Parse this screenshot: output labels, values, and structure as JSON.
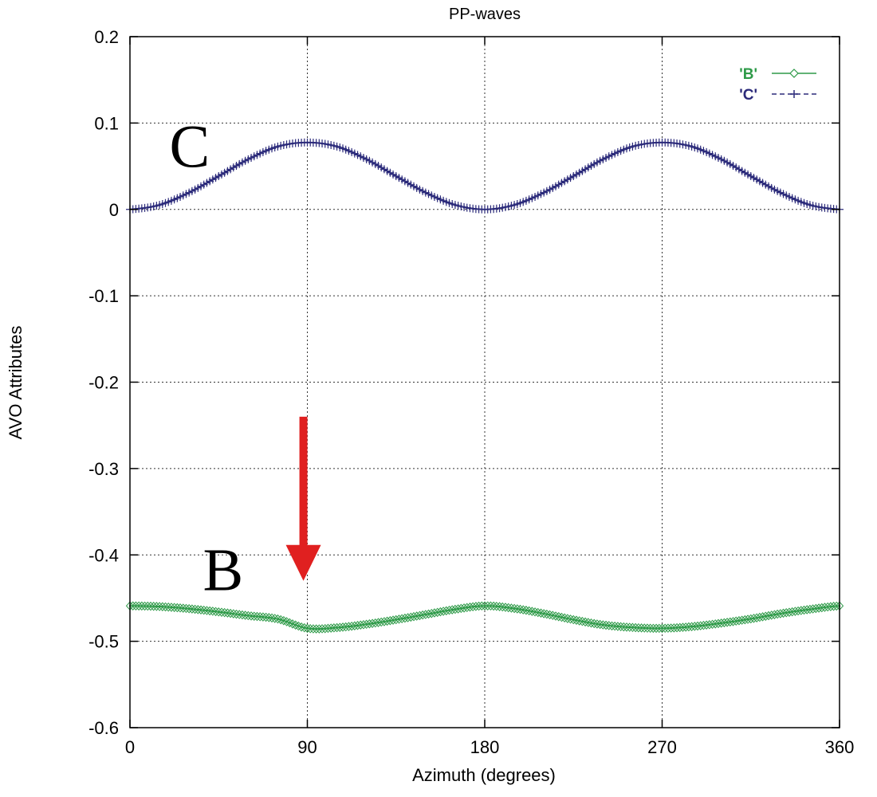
{
  "chart_data": {
    "type": "line",
    "title": "PP-waves",
    "xlabel": "Azimuth (degrees)",
    "ylabel": "AVO Attributes",
    "xlim": [
      0,
      360
    ],
    "ylim": [
      -0.6,
      0.2
    ],
    "xticks": [
      "0",
      "90",
      "180",
      "270",
      "360"
    ],
    "yticks": [
      "0.2",
      "0.1",
      "0",
      "-0.1",
      "-0.2",
      "-0.3",
      "-0.4",
      "-0.5",
      "-0.6"
    ],
    "grid": true,
    "legend_position": "top-right",
    "series": [
      {
        "name": "'B'",
        "color": "#2e9a48",
        "marker": "diamond",
        "line": "solid",
        "x": [
          0,
          15,
          30,
          45,
          60,
          75,
          90,
          105,
          120,
          135,
          150,
          165,
          180,
          195,
          210,
          225,
          240,
          255,
          270,
          285,
          300,
          315,
          330,
          345,
          360
        ],
        "y": [
          -0.459,
          -0.4598,
          -0.4623,
          -0.466,
          -0.4703,
          -0.4742,
          -0.485,
          -0.4842,
          -0.4803,
          -0.475,
          -0.469,
          -0.463,
          -0.459,
          -0.462,
          -0.468,
          -0.475,
          -0.481,
          -0.484,
          -0.485,
          -0.483,
          -0.479,
          -0.474,
          -0.468,
          -0.463,
          -0.459
        ]
      },
      {
        "name": "'C'",
        "color": "#2b2a7a",
        "marker": "plus",
        "line": "dashed",
        "x": [
          0,
          15,
          30,
          45,
          60,
          75,
          90,
          105,
          120,
          135,
          150,
          165,
          180,
          195,
          210,
          225,
          240,
          255,
          270,
          285,
          300,
          315,
          330,
          345,
          360
        ],
        "y": [
          0,
          0.0052,
          0.0195,
          0.0385,
          0.058,
          0.0728,
          0.0775,
          0.0728,
          0.058,
          0.0385,
          0.0195,
          0.0052,
          0,
          0.0052,
          0.0195,
          0.0385,
          0.058,
          0.0728,
          0.0775,
          0.0728,
          0.058,
          0.0385,
          0.0195,
          0.0052,
          0
        ]
      }
    ],
    "annotations": [
      {
        "text": "C",
        "x": 20,
        "y": 0.075
      },
      {
        "text": "B",
        "x": 37,
        "y": -0.415
      }
    ],
    "arrow": {
      "color": "#e02020",
      "x": 88,
      "y_start": -0.24,
      "y_end": -0.43
    }
  }
}
